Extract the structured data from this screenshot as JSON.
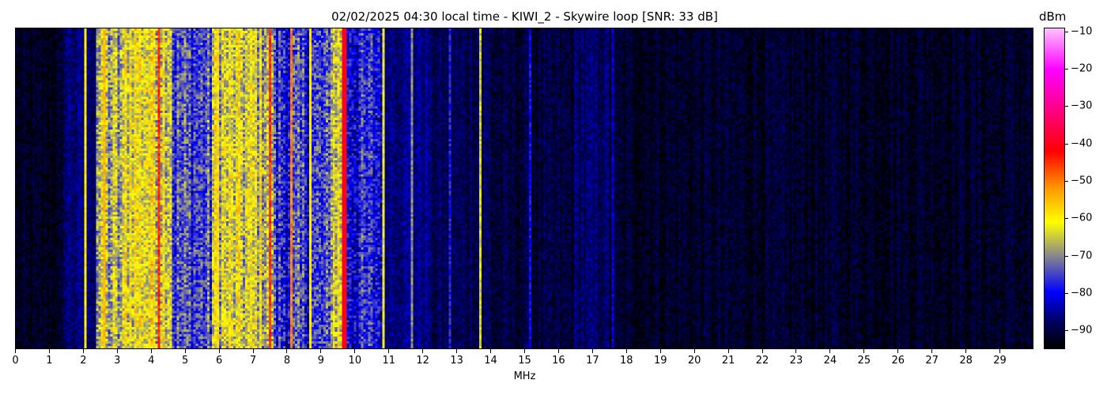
{
  "chart_data": {
    "type": "heatmap",
    "title": "02/02/2025 04:30 local time - KIWI_2 - Skywire loop [SNR: 33 dB]",
    "xlabel": "MHz",
    "ylabel": "",
    "xlim": [
      0,
      30
    ],
    "x_ticks": [
      "0",
      "1",
      "2",
      "3",
      "4",
      "5",
      "6",
      "7",
      "8",
      "9",
      "10",
      "11",
      "12",
      "13",
      "14",
      "15",
      "16",
      "17",
      "18",
      "19",
      "20",
      "21",
      "22",
      "23",
      "24",
      "25",
      "26",
      "27",
      "28",
      "29"
    ],
    "colorbar": {
      "label": "dBm",
      "range": [
        -95,
        -9
      ],
      "ticks": [
        "-10",
        "-20",
        "-30",
        "-40",
        "-50",
        "-60",
        "-70",
        "-80",
        "-90"
      ],
      "colormap": [
        {
          "dbm": -95,
          "color": "#000000"
        },
        {
          "dbm": -88,
          "color": "#000060"
        },
        {
          "dbm": -80,
          "color": "#0000ff"
        },
        {
          "dbm": -70,
          "color": "#8a8a8a"
        },
        {
          "dbm": -61,
          "color": "#ffff00"
        },
        {
          "dbm": -52,
          "color": "#ff9900"
        },
        {
          "dbm": -42,
          "color": "#ff0000"
        },
        {
          "dbm": -30,
          "color": "#ff0090"
        },
        {
          "dbm": -20,
          "color": "#ff00ff"
        },
        {
          "dbm": -9,
          "color": "#ffc0ff"
        }
      ]
    },
    "band_levels_dbm": [
      {
        "from": 0,
        "to": 1.4,
        "dbm": -93
      },
      {
        "from": 1.4,
        "to": 2.4,
        "dbm": -87
      },
      {
        "from": 2.4,
        "to": 3.2,
        "dbm": -68
      },
      {
        "from": 3.2,
        "to": 4.6,
        "dbm": -62
      },
      {
        "from": 4.6,
        "to": 5.8,
        "dbm": -75
      },
      {
        "from": 5.8,
        "to": 7.6,
        "dbm": -65
      },
      {
        "from": 7.6,
        "to": 9.3,
        "dbm": -77
      },
      {
        "from": 9.3,
        "to": 9.8,
        "dbm": -64
      },
      {
        "from": 9.8,
        "to": 10.9,
        "dbm": -79
      },
      {
        "from": 10.9,
        "to": 12.2,
        "dbm": -86
      },
      {
        "from": 12.2,
        "to": 14.0,
        "dbm": -89
      },
      {
        "from": 14.0,
        "to": 16.5,
        "dbm": -91
      },
      {
        "from": 16.5,
        "to": 17.5,
        "dbm": -88
      },
      {
        "from": 17.5,
        "to": 30.0,
        "dbm": -92
      }
    ],
    "carriers": [
      {
        "mhz": 2.05,
        "dbm": -60
      },
      {
        "mhz": 2.6,
        "dbm": -55
      },
      {
        "mhz": 4.25,
        "dbm": -45
      },
      {
        "mhz": 5.95,
        "dbm": -58
      },
      {
        "mhz": 7.5,
        "dbm": -45
      },
      {
        "mhz": 8.15,
        "dbm": -50
      },
      {
        "mhz": 8.7,
        "dbm": -60
      },
      {
        "mhz": 9.7,
        "dbm": -40
      },
      {
        "mhz": 10.85,
        "dbm": -62
      },
      {
        "mhz": 11.7,
        "dbm": -70
      },
      {
        "mhz": 12.8,
        "dbm": -78
      },
      {
        "mhz": 13.7,
        "dbm": -65
      },
      {
        "mhz": 15.2,
        "dbm": -80
      },
      {
        "mhz": 17.6,
        "dbm": -82
      }
    ]
  }
}
